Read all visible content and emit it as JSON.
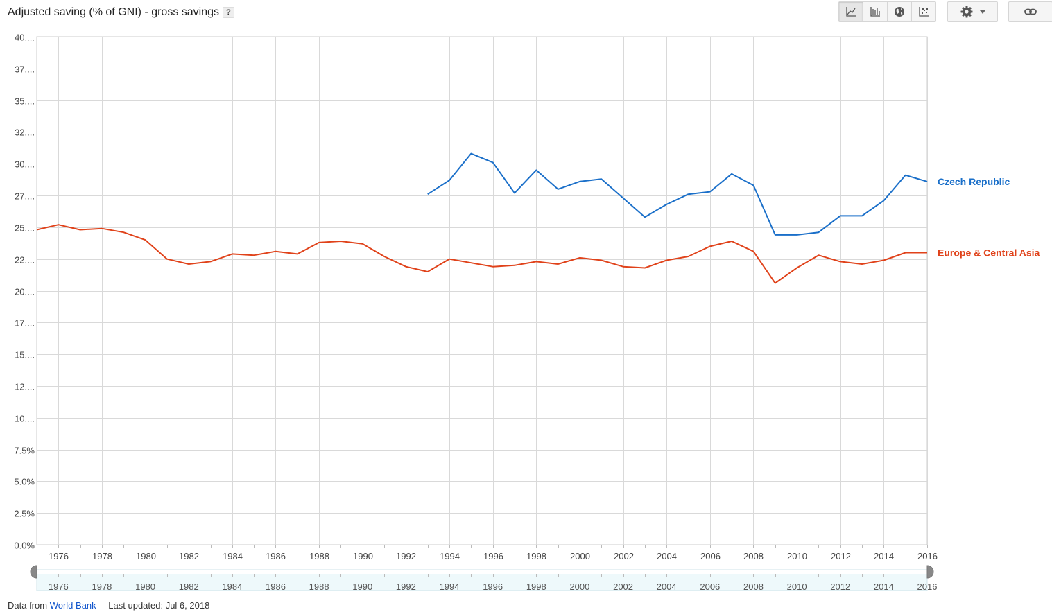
{
  "header": {
    "title": "Adjusted saving (% of GNI) - gross savings",
    "help_label": "?"
  },
  "toolbar": {
    "view_buttons": [
      {
        "icon": "line-chart-icon",
        "active": true
      },
      {
        "icon": "bar-chart-icon",
        "active": false
      },
      {
        "icon": "globe-map-icon",
        "active": false
      },
      {
        "icon": "scatter-plot-icon",
        "active": false
      }
    ],
    "settings_icon": "gear-icon",
    "dropdown_icon": "caret-down-icon",
    "link_icon": "chain-link-icon"
  },
  "footer": {
    "source_prefix": "Data from",
    "source_link": "World Bank",
    "last_updated": "Last updated: Jul 6, 2018"
  },
  "chart_data": {
    "type": "line",
    "title": "Adjusted saving (% of GNI) - gross savings",
    "ylim": [
      0,
      40
    ],
    "xlim": [
      1975,
      2016
    ],
    "y_ticks": [
      "0.0%",
      "2.5%",
      "5.0%",
      "7.5%",
      "10....",
      "12....",
      "15....",
      "17....",
      "20....",
      "22....",
      "25....",
      "27....",
      "30....",
      "32....",
      "35....",
      "37....",
      "40...."
    ],
    "y_tick_values": [
      0,
      2.5,
      5,
      7.5,
      10,
      12.5,
      15,
      17.5,
      20,
      22.5,
      25,
      27.5,
      30,
      32.5,
      35,
      37.5,
      40
    ],
    "x_ticks": [
      "1976",
      "1978",
      "1980",
      "1982",
      "1984",
      "1986",
      "1988",
      "1990",
      "1992",
      "1994",
      "1996",
      "1998",
      "2000",
      "2002",
      "2004",
      "2006",
      "2008",
      "2010",
      "2012",
      "2014",
      "2016"
    ],
    "grid": true,
    "legend": "right",
    "series": [
      {
        "name": "Czech Republic",
        "color": "#1a6fc9",
        "x": [
          1993,
          1994,
          1995,
          1996,
          1997,
          1998,
          1999,
          2000,
          2001,
          2002,
          2003,
          2004,
          2005,
          2006,
          2007,
          2008,
          2009,
          2010,
          2011,
          2012,
          2013,
          2014,
          2015,
          2016
        ],
        "values": [
          27.6,
          28.7,
          30.8,
          30.1,
          27.7,
          29.5,
          28.0,
          28.6,
          28.8,
          27.3,
          25.8,
          26.8,
          27.6,
          27.8,
          29.2,
          28.3,
          24.4,
          24.4,
          24.6,
          25.9,
          25.9,
          27.1,
          29.1,
          28.6
        ]
      },
      {
        "name": "Europe & Central Asia",
        "color": "#e0421a",
        "x": [
          1975,
          1976,
          1977,
          1978,
          1979,
          1980,
          1981,
          1982,
          1983,
          1984,
          1985,
          1986,
          1987,
          1988,
          1989,
          1990,
          1991,
          1992,
          1993,
          1994,
          1995,
          1996,
          1997,
          1998,
          1999,
          2000,
          2001,
          2002,
          2003,
          2004,
          2005,
          2006,
          2007,
          2008,
          2009,
          2010,
          2011,
          2012,
          2013,
          2014,
          2015,
          2016
        ],
        "values": [
          24.8,
          25.2,
          24.8,
          24.9,
          24.6,
          24.0,
          22.5,
          22.1,
          22.3,
          22.9,
          22.8,
          23.1,
          22.9,
          23.8,
          23.9,
          23.7,
          22.7,
          21.9,
          21.5,
          22.5,
          22.2,
          21.9,
          22.0,
          22.3,
          22.1,
          22.6,
          22.4,
          21.9,
          21.8,
          22.4,
          22.7,
          23.5,
          23.9,
          23.1,
          20.6,
          21.8,
          22.8,
          22.3,
          22.1,
          22.4,
          23.0,
          23.0
        ]
      }
    ]
  }
}
